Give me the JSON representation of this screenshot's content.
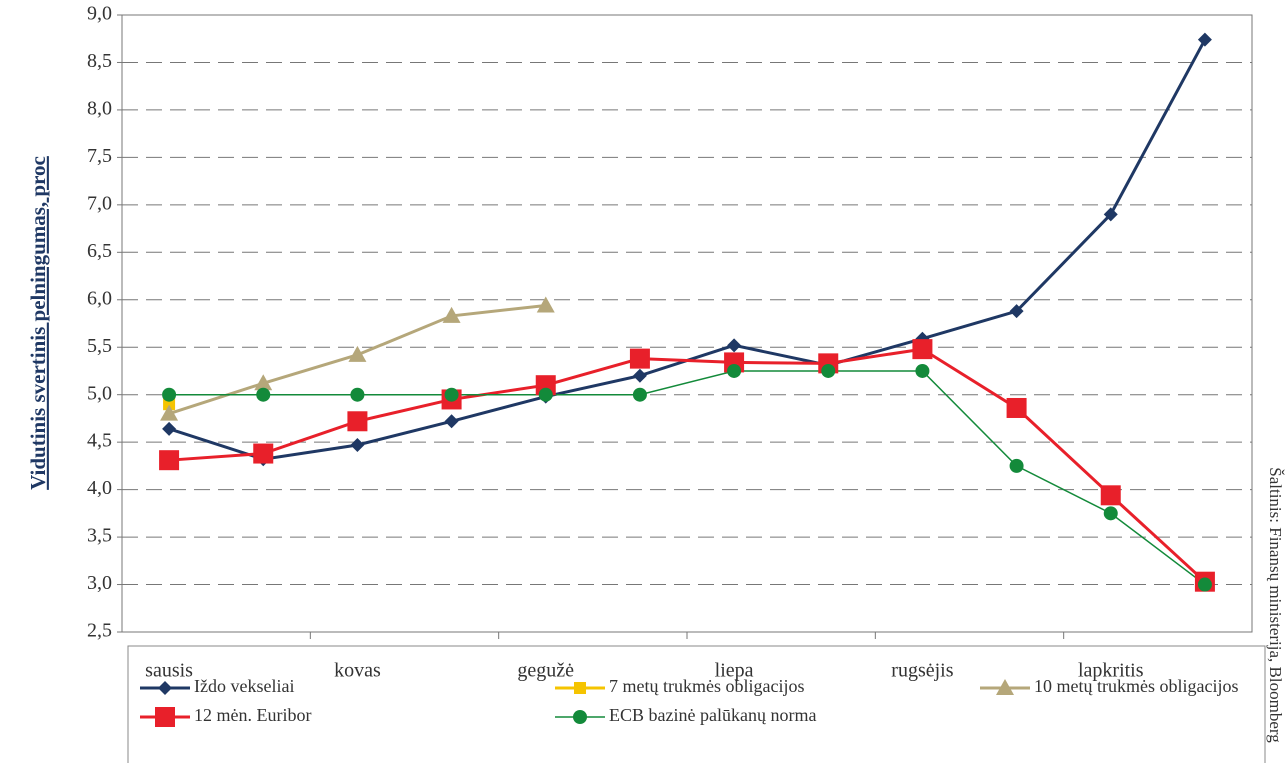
{
  "chart_data": {
    "type": "line",
    "y_label": "Vidutinis svertinis pelningumas, proc",
    "source": "Šaltinis: Finansų ministerija, Bloomberg",
    "categories": [
      "sausis",
      null,
      "kovas",
      null,
      "gegužė",
      null,
      "liepa",
      null,
      "rugsėjis",
      null,
      "lapkritis",
      null
    ],
    "series": [
      {
        "name": "Iždo vekseliai",
        "color": "#1f3864",
        "marker": "diamond",
        "values": [
          4.64,
          4.32,
          4.47,
          4.72,
          4.98,
          5.2,
          5.52,
          5.31,
          5.59,
          5.88,
          6.9,
          8.74
        ]
      },
      {
        "name": "7 metų trukmės obligacijos",
        "color": "#f5c400",
        "marker": "square",
        "values": [
          4.9,
          null,
          null,
          null,
          null,
          null,
          null,
          null,
          null,
          null,
          null,
          null
        ]
      },
      {
        "name": "10 metų trukmės obligacijos",
        "color": "#b5a77a",
        "marker": "triangle",
        "values": [
          4.8,
          5.12,
          5.42,
          5.83,
          5.94,
          null,
          null,
          null,
          null,
          null,
          null,
          null
        ]
      },
      {
        "name": "12 mėn. Euribor",
        "color": "#e8202a",
        "marker": "bigsquare",
        "values": [
          4.31,
          4.38,
          4.72,
          4.95,
          5.1,
          5.38,
          5.34,
          5.33,
          5.48,
          4.86,
          3.94,
          3.03
        ]
      },
      {
        "name": "ECB bazinė palūkanų norma",
        "color": "#138a3a",
        "marker": "circle",
        "values": [
          5.0,
          5.0,
          5.0,
          5.0,
          5.0,
          5.0,
          5.25,
          5.25,
          5.25,
          4.25,
          3.75,
          3.0
        ]
      }
    ],
    "ylim": [
      2.5,
      9.0
    ],
    "yticks": [
      {
        "value": 2.5,
        "label": "2,5"
      },
      {
        "value": 3.0,
        "label": "3,0"
      },
      {
        "value": 3.5,
        "label": "3,5"
      },
      {
        "value": 4.0,
        "label": "4,0"
      },
      {
        "value": 4.5,
        "label": "4,5"
      },
      {
        "value": 5.0,
        "label": "5,0"
      },
      {
        "value": 5.5,
        "label": "5,5"
      },
      {
        "value": 6.0,
        "label": "6,0"
      },
      {
        "value": 6.5,
        "label": "6,5"
      },
      {
        "value": 7.0,
        "label": "7,0"
      },
      {
        "value": 7.5,
        "label": "7,5"
      },
      {
        "value": 8.0,
        "label": "8,0"
      },
      {
        "value": 8.5,
        "label": "8,5"
      },
      {
        "value": 9.0,
        "label": "9,0"
      }
    ],
    "grid": true
  }
}
